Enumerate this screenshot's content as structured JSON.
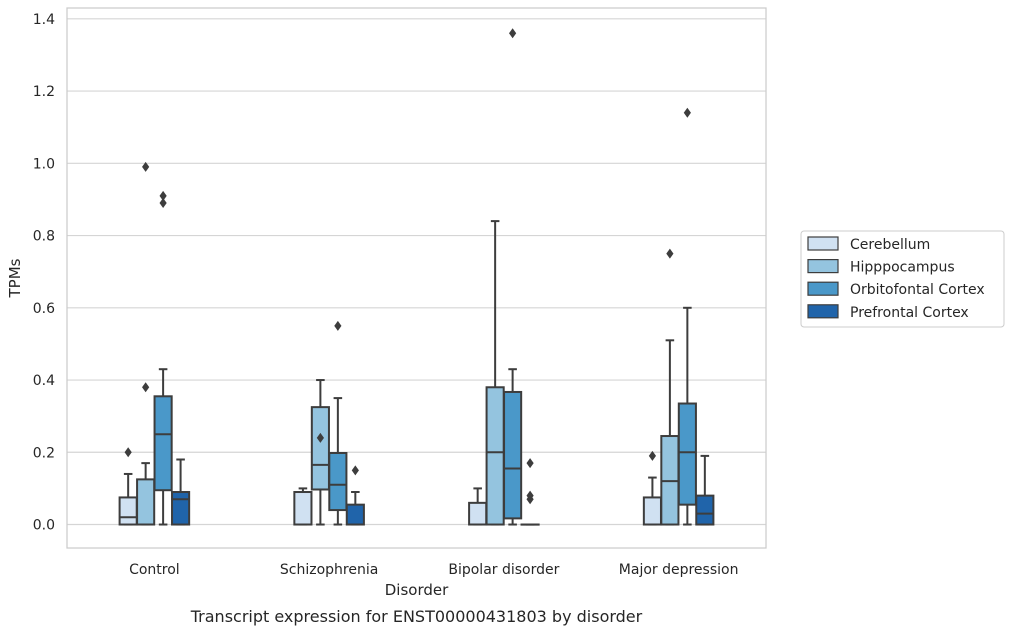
{
  "chart_data": {
    "type": "box",
    "title": "",
    "caption": "Transcript expression for ENST00000431803 by disorder",
    "xlabel": "Disorder",
    "ylabel": "TPMs",
    "ylim": [
      -0.065,
      1.43
    ],
    "yticks": [
      0.0,
      0.2,
      0.4,
      0.6,
      0.8,
      1.0,
      1.2,
      1.4
    ],
    "ytick_labels": [
      "0.0",
      "0.2",
      "0.4",
      "0.6",
      "0.8",
      "1.0",
      "1.2",
      "1.4"
    ],
    "grid": true,
    "legend_position": "right",
    "categories": [
      "Control",
      "Schizophrenia",
      "Bipolar disorder",
      "Major depression"
    ],
    "series": [
      {
        "name": "Cerebellum",
        "color": "#d0e1f2",
        "boxes": [
          {
            "whislo": 0.0,
            "q1": 0.0,
            "med": 0.02,
            "q3": 0.075,
            "whishi": 0.14,
            "fliers": [
              0.2
            ]
          },
          {
            "whislo": 0.0,
            "q1": 0.0,
            "med": 0.0,
            "q3": 0.09,
            "whishi": 0.1,
            "fliers": []
          },
          {
            "whislo": 0.0,
            "q1": 0.0,
            "med": 0.0,
            "q3": 0.06,
            "whishi": 0.1,
            "fliers": []
          },
          {
            "whislo": 0.0,
            "q1": 0.0,
            "med": 0.0,
            "q3": 0.075,
            "whishi": 0.13,
            "fliers": [
              0.19
            ]
          }
        ]
      },
      {
        "name": "Hipppocampus",
        "color": "#94c4df",
        "boxes": [
          {
            "whislo": 0.0,
            "q1": 0.0,
            "med": 0.0,
            "q3": 0.125,
            "whishi": 0.17,
            "fliers": [
              0.38,
              0.99
            ]
          },
          {
            "whislo": 0.0,
            "q1": 0.097,
            "med": 0.165,
            "q3": 0.325,
            "whishi": 0.4,
            "fliers": [
              0.24
            ]
          },
          {
            "whislo": 0.0,
            "q1": 0.0,
            "med": 0.2,
            "q3": 0.38,
            "whishi": 0.84,
            "fliers": []
          },
          {
            "whislo": 0.0,
            "q1": 0.0,
            "med": 0.12,
            "q3": 0.245,
            "whishi": 0.51,
            "fliers": [
              0.75
            ]
          }
        ]
      },
      {
        "name": "Orbitofontal Cortex",
        "color": "#4a98c9",
        "boxes": [
          {
            "whislo": 0.0,
            "q1": 0.095,
            "med": 0.25,
            "q3": 0.355,
            "whishi": 0.43,
            "fliers": [
              0.89,
              0.91
            ]
          },
          {
            "whislo": 0.0,
            "q1": 0.04,
            "med": 0.11,
            "q3": 0.198,
            "whishi": 0.35,
            "fliers": [
              0.55
            ]
          },
          {
            "whislo": 0.0,
            "q1": 0.017,
            "med": 0.155,
            "q3": 0.367,
            "whishi": 0.43,
            "fliers": [
              1.36
            ]
          },
          {
            "whislo": 0.0,
            "q1": 0.055,
            "med": 0.2,
            "q3": 0.335,
            "whishi": 0.6,
            "fliers": [
              1.14
            ]
          }
        ]
      },
      {
        "name": "Prefrontal Cortex",
        "color": "#2064aa",
        "boxes": [
          {
            "whislo": 0.0,
            "q1": 0.0,
            "med": 0.07,
            "q3": 0.09,
            "whishi": 0.18,
            "fliers": []
          },
          {
            "whislo": 0.0,
            "q1": 0.0,
            "med": 0.0,
            "q3": 0.055,
            "whishi": 0.09,
            "fliers": [
              0.15
            ]
          },
          {
            "whislo": 0.0,
            "q1": 0.0,
            "med": 0.0,
            "q3": 0.0,
            "whishi": 0.0,
            "fliers": [
              0.07,
              0.08,
              0.17
            ]
          },
          {
            "whislo": 0.0,
            "q1": 0.0,
            "med": 0.03,
            "q3": 0.08,
            "whishi": 0.19,
            "fliers": []
          }
        ]
      }
    ]
  }
}
